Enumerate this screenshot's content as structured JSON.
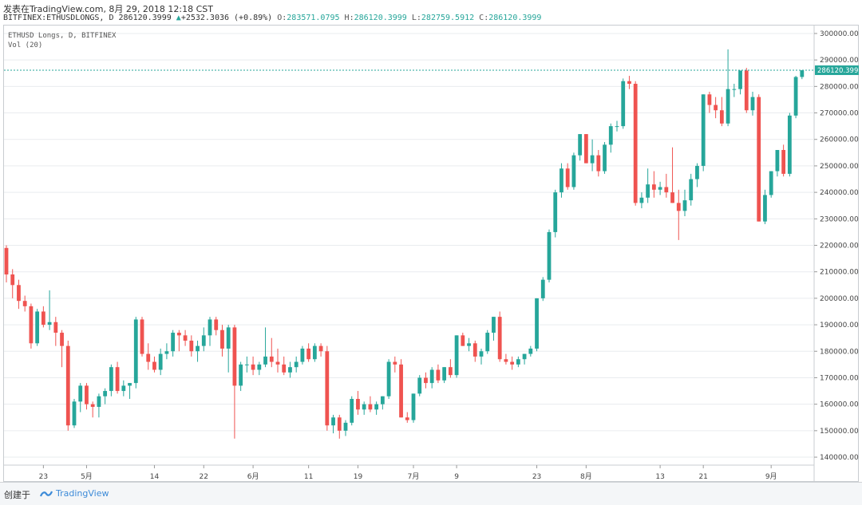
{
  "header": {
    "published": "发表在TradingView.com, 8月 29, 2018 12:18 CST",
    "symbol": "BITFINEX:ETHUSDLONGS, D",
    "last": "286120.3999",
    "change": "+2532.3036 (+0.89%)",
    "open_label": "O:",
    "open": "283571.0795",
    "high_label": "H:",
    "high": "286120.3999",
    "low_label": "L:",
    "low": "282759.5912",
    "close_label": "C:",
    "close": "286120.3999"
  },
  "legend": {
    "title": "ETHUSD Longs, D, BITFINEX",
    "vol": "Vol (20)"
  },
  "footer": {
    "created": "创建于",
    "brand": "TradingView"
  },
  "colors": {
    "up": "#26a69a",
    "down": "#ef5350",
    "grid": "#e9ecef",
    "price_line": "#26a69a"
  },
  "chart_data": {
    "type": "candlestick",
    "y_ticks": [
      "140000.0000",
      "150000.0000",
      "160000.0000",
      "170000.0000",
      "180000.0000",
      "190000.0000",
      "200000.0000",
      "210000.0000",
      "220000.0000",
      "230000.0000",
      "240000.0000",
      "250000.0000",
      "260000.0000",
      "270000.0000",
      "280000.0000",
      "290000.0000",
      "300000.0000"
    ],
    "ylim": [
      137000,
      303000
    ],
    "x_ticks": [
      "23",
      "5月",
      "14",
      "22",
      "6月",
      "11",
      "19",
      "7月",
      "9",
      "23",
      "8月",
      "13",
      "21",
      "9月"
    ],
    "last_price_label": "286120.3999",
    "last_price": 286120,
    "candles": [
      [
        219000,
        220000,
        206000,
        209000
      ],
      [
        209000,
        211000,
        200000,
        205000
      ],
      [
        205000,
        207000,
        196000,
        199000
      ],
      [
        199000,
        201000,
        195000,
        197000
      ],
      [
        197000,
        198000,
        181000,
        183000
      ],
      [
        183000,
        196000,
        182000,
        195000
      ],
      [
        195000,
        197000,
        189000,
        190000
      ],
      [
        190000,
        203000,
        188000,
        191000
      ],
      [
        191000,
        193000,
        182000,
        187000
      ],
      [
        187000,
        188000,
        174000,
        182000
      ],
      [
        182000,
        184000,
        150000,
        152000
      ],
      [
        152000,
        162000,
        151000,
        161000
      ],
      [
        161000,
        168000,
        157000,
        167000
      ],
      [
        167000,
        168000,
        158000,
        160000
      ],
      [
        160000,
        161000,
        155000,
        159000
      ],
      [
        159000,
        164000,
        155000,
        163000
      ],
      [
        163000,
        166000,
        160000,
        165000
      ],
      [
        165000,
        175000,
        163000,
        174000
      ],
      [
        174000,
        176000,
        164000,
        165000
      ],
      [
        165000,
        169000,
        163000,
        167000
      ],
      [
        167000,
        168000,
        162000,
        168000
      ],
      [
        168000,
        193000,
        166000,
        192000
      ],
      [
        192000,
        193000,
        178000,
        179000
      ],
      [
        179000,
        183000,
        173000,
        176000
      ],
      [
        176000,
        178000,
        172000,
        173000
      ],
      [
        173000,
        181000,
        171000,
        179000
      ],
      [
        179000,
        183000,
        177000,
        180000
      ],
      [
        180000,
        188000,
        178000,
        187000
      ],
      [
        187000,
        188000,
        180000,
        186000
      ],
      [
        186000,
        188000,
        182000,
        184000
      ],
      [
        184000,
        186000,
        178000,
        180000
      ],
      [
        180000,
        184000,
        176000,
        182000
      ],
      [
        182000,
        189000,
        180000,
        186000
      ],
      [
        186000,
        193000,
        182000,
        192000
      ],
      [
        192000,
        193000,
        186000,
        188000
      ],
      [
        188000,
        190000,
        178000,
        181000
      ],
      [
        181000,
        190000,
        172000,
        189000
      ],
      [
        189000,
        190000,
        147000,
        167000
      ],
      [
        167000,
        176000,
        165000,
        175000
      ],
      [
        175000,
        178000,
        172000,
        175000
      ],
      [
        175000,
        178000,
        171000,
        173000
      ],
      [
        173000,
        176000,
        171000,
        175000
      ],
      [
        175000,
        189000,
        174000,
        178000
      ],
      [
        178000,
        185000,
        174000,
        176000
      ],
      [
        176000,
        181000,
        172000,
        175000
      ],
      [
        175000,
        178000,
        171000,
        172000
      ],
      [
        172000,
        176000,
        170000,
        174000
      ],
      [
        174000,
        178000,
        172000,
        176000
      ],
      [
        176000,
        182000,
        175000,
        181000
      ],
      [
        181000,
        183000,
        176000,
        177000
      ],
      [
        177000,
        183000,
        176000,
        182000
      ],
      [
        182000,
        183000,
        178000,
        180000
      ],
      [
        180000,
        182000,
        150000,
        152000
      ],
      [
        152000,
        156000,
        149000,
        155000
      ],
      [
        155000,
        156000,
        147000,
        150000
      ],
      [
        150000,
        154000,
        148000,
        153000
      ],
      [
        153000,
        163000,
        152000,
        162000
      ],
      [
        162000,
        165000,
        156000,
        158000
      ],
      [
        158000,
        161000,
        156000,
        160000
      ],
      [
        160000,
        163000,
        157000,
        158000
      ],
      [
        158000,
        161000,
        156000,
        160000
      ],
      [
        160000,
        163000,
        158000,
        163000
      ],
      [
        163000,
        177000,
        162000,
        176000
      ],
      [
        176000,
        178000,
        172000,
        175000
      ],
      [
        175000,
        177000,
        155000,
        155000
      ],
      [
        155000,
        157000,
        153000,
        154000
      ],
      [
        154000,
        164000,
        153000,
        164000
      ],
      [
        164000,
        171000,
        163000,
        170000
      ],
      [
        170000,
        172000,
        166000,
        168000
      ],
      [
        168000,
        174000,
        166000,
        173000
      ],
      [
        173000,
        175000,
        168000,
        169000
      ],
      [
        169000,
        174000,
        168000,
        174000
      ],
      [
        174000,
        177000,
        170000,
        171000
      ],
      [
        171000,
        186000,
        170000,
        186000
      ],
      [
        186000,
        187000,
        182000,
        182000
      ],
      [
        182000,
        185000,
        180000,
        183000
      ],
      [
        183000,
        184000,
        176000,
        178000
      ],
      [
        178000,
        181000,
        175000,
        180000
      ],
      [
        180000,
        188000,
        179000,
        187000
      ],
      [
        187000,
        193000,
        184000,
        193000
      ],
      [
        193000,
        195000,
        176000,
        177000
      ],
      [
        177000,
        179000,
        175000,
        176000
      ],
      [
        176000,
        178000,
        173000,
        175000
      ],
      [
        175000,
        178000,
        174000,
        177000
      ],
      [
        177000,
        179000,
        175000,
        179000
      ],
      [
        179000,
        182000,
        178000,
        181000
      ],
      [
        181000,
        200000,
        180000,
        200000
      ],
      [
        200000,
        208000,
        199000,
        207000
      ],
      [
        207000,
        226000,
        206000,
        225000
      ],
      [
        225000,
        241000,
        223000,
        240000
      ],
      [
        240000,
        251000,
        238000,
        249000
      ],
      [
        249000,
        251000,
        241000,
        242000
      ],
      [
        242000,
        255000,
        241000,
        254000
      ],
      [
        254000,
        262000,
        252000,
        262000
      ],
      [
        262000,
        262000,
        251000,
        251000
      ],
      [
        251000,
        260000,
        248000,
        254000
      ],
      [
        254000,
        256000,
        246000,
        248000
      ],
      [
        248000,
        259000,
        247000,
        258000
      ],
      [
        258000,
        266000,
        255000,
        265000
      ],
      [
        265000,
        267000,
        263000,
        265000
      ],
      [
        265000,
        283000,
        264000,
        282000
      ],
      [
        282000,
        284000,
        279000,
        281000
      ],
      [
        281000,
        282000,
        235000,
        236000
      ],
      [
        236000,
        240000,
        234000,
        238000
      ],
      [
        238000,
        249000,
        236000,
        243000
      ],
      [
        243000,
        248000,
        238000,
        241000
      ],
      [
        241000,
        244000,
        239000,
        242000
      ],
      [
        242000,
        247000,
        238000,
        240000
      ],
      [
        240000,
        257000,
        236000,
        236000
      ],
      [
        236000,
        241000,
        222000,
        233000
      ],
      [
        233000,
        241000,
        231000,
        237000
      ],
      [
        237000,
        247000,
        235000,
        245000
      ],
      [
        245000,
        251000,
        242000,
        250000
      ],
      [
        250000,
        277000,
        248000,
        277000
      ],
      [
        277000,
        278000,
        270000,
        273000
      ],
      [
        273000,
        276000,
        268000,
        271000
      ],
      [
        271000,
        276000,
        265000,
        266000
      ],
      [
        266000,
        294000,
        265000,
        279000
      ],
      [
        279000,
        281000,
        276000,
        279000
      ],
      [
        279000,
        286000,
        277000,
        286000
      ],
      [
        286000,
        287000,
        270000,
        271000
      ],
      [
        271000,
        278000,
        269000,
        276000
      ],
      [
        276000,
        277000,
        229000,
        229000
      ],
      [
        229000,
        241000,
        228000,
        239000
      ],
      [
        239000,
        248000,
        238000,
        248000
      ],
      [
        248000,
        256000,
        246000,
        256000
      ],
      [
        256000,
        258000,
        246000,
        247000
      ],
      [
        247000,
        270000,
        246000,
        269000
      ],
      [
        269000,
        284000,
        268000,
        283570
      ],
      [
        283570,
        286120,
        282760,
        286120
      ]
    ]
  }
}
